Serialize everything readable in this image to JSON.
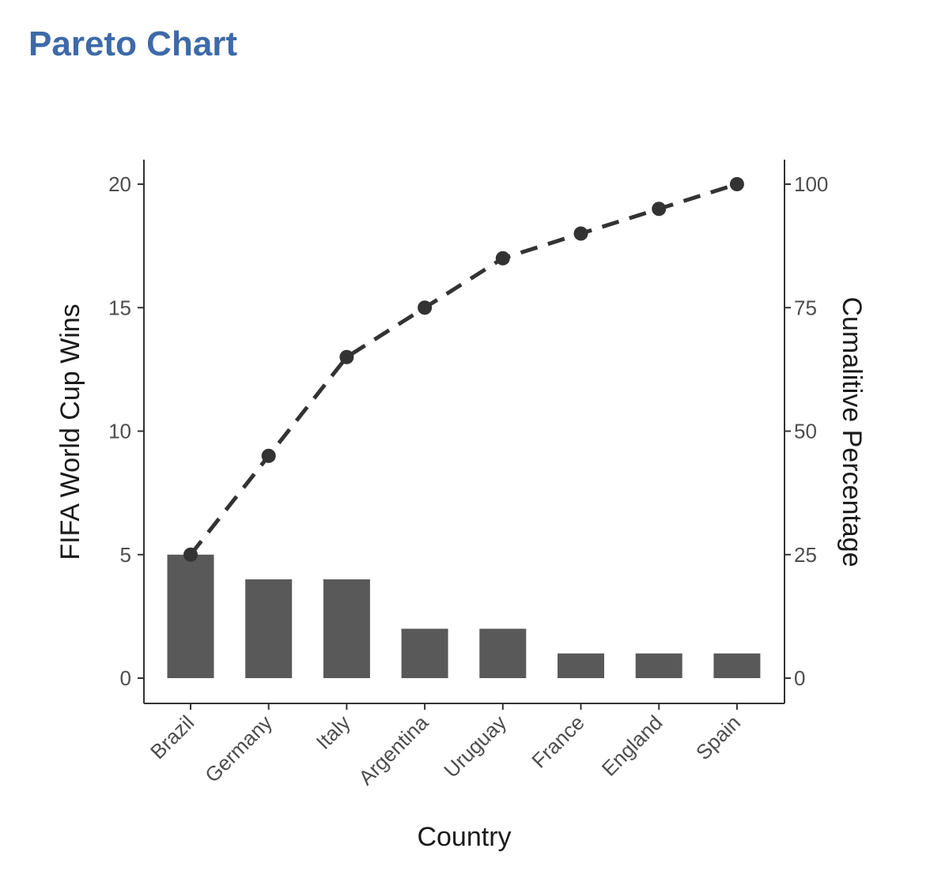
{
  "page": {
    "title": "Pareto Chart",
    "title_color": "#3d6aa8"
  },
  "chart_data": {
    "type": "bar",
    "categories": [
      "Brazil",
      "Germany",
      "Italy",
      "Argentina",
      "Uruguay",
      "France",
      "England",
      "Spain"
    ],
    "series": [
      {
        "type": "bar",
        "axis": "left",
        "values": [
          5,
          4,
          4,
          2,
          2,
          1,
          1,
          1
        ],
        "color": "#595959"
      },
      {
        "type": "line",
        "axis": "right",
        "style": "dashed",
        "markers": true,
        "values": [
          25,
          45,
          65,
          75,
          85,
          90,
          95,
          100
        ],
        "color": "#333333"
      }
    ],
    "xlabel": "Country",
    "ylabel": "FIFA World Cup Wins",
    "y2label": "Cumalitive Percentage",
    "ylim": [
      0,
      20
    ],
    "y2lim": [
      0,
      100
    ],
    "yticks": [
      0,
      5,
      10,
      15,
      20
    ],
    "y2ticks": [
      0,
      25,
      50,
      75,
      100
    ],
    "grid": false,
    "legend": "none"
  }
}
